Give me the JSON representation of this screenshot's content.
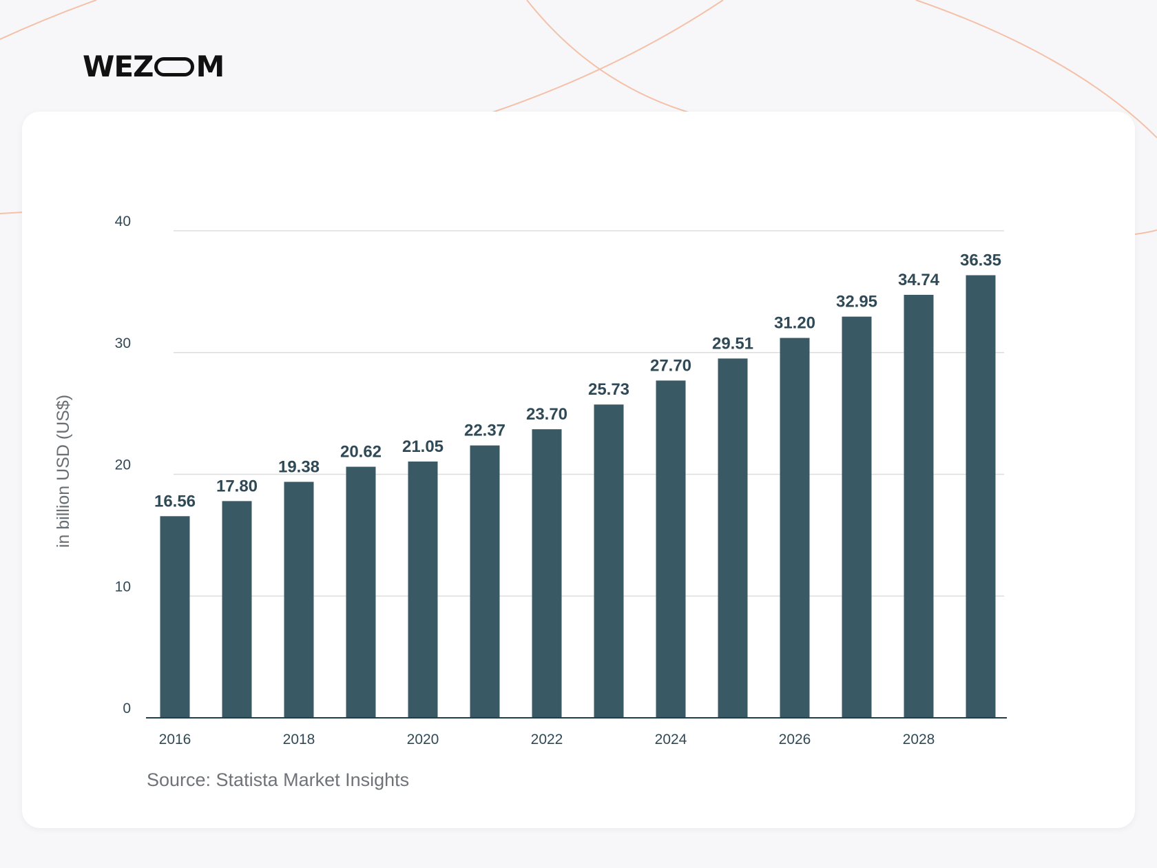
{
  "brand": {
    "logo_left": "WEZ",
    "logo_right": "M"
  },
  "colors": {
    "bar": "#395965",
    "text": "#2f4a56",
    "accent_curve": "#f5c0a8",
    "grid": "#dddddd"
  },
  "chart_data": {
    "type": "bar",
    "categories": [
      "2016",
      "2017",
      "2018",
      "2019",
      "2020",
      "2021",
      "2022",
      "2023",
      "2024",
      "2025",
      "2026",
      "2027",
      "2028",
      "2029"
    ],
    "values": [
      16.56,
      17.8,
      19.38,
      20.62,
      21.05,
      22.37,
      23.7,
      25.73,
      27.7,
      29.51,
      31.2,
      32.95,
      34.74,
      36.35
    ],
    "bar_labels": [
      "16.56",
      "17.80",
      "19.38",
      "20.62",
      "21.05",
      "22.37",
      "23.70",
      "25.73",
      "27.70",
      "29.51",
      "31.20",
      "32.95",
      "34.74",
      "36.35"
    ],
    "x_tick_labels": [
      "2016",
      "2018",
      "2020",
      "2022",
      "2024",
      "2026",
      "2028"
    ],
    "y_ticks": [
      "0",
      "10",
      "20",
      "30",
      "40"
    ],
    "ylabel": "in billion USD (US$)",
    "xlabel": "",
    "title": "",
    "ylim": [
      0,
      40
    ],
    "grid": true,
    "source": "Source: Statista Market Insights"
  }
}
